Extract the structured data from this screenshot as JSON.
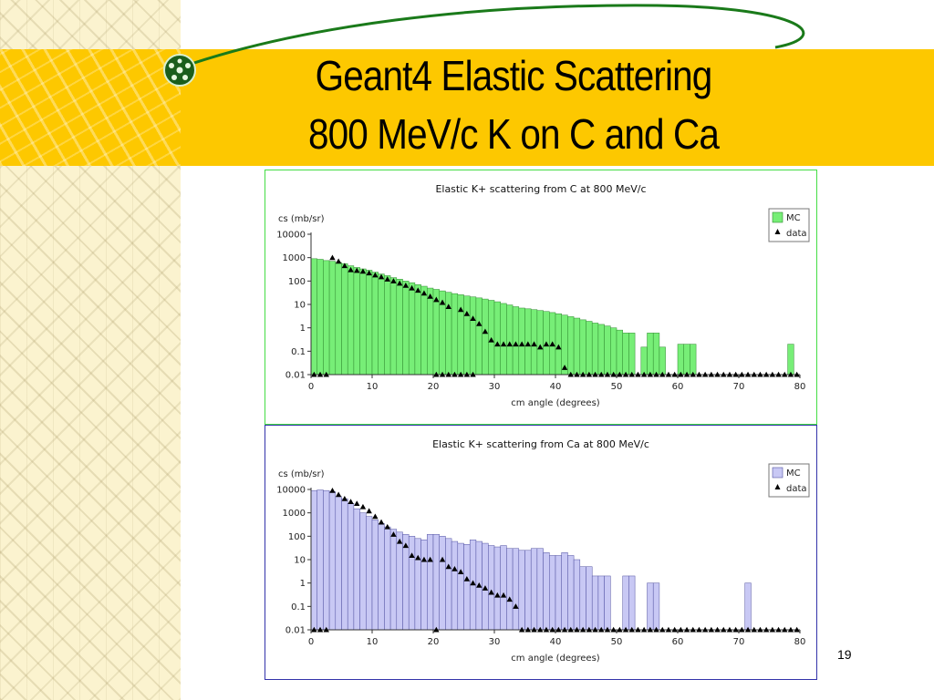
{
  "slide": {
    "title_line1": "Geant4 Elastic Scattering",
    "title_line2": "800 MeV/c  K on C and Ca",
    "page_number": "19",
    "logo_icon": "atom-globe-icon",
    "colors": {
      "band": "#fdc800",
      "orbit": "#1a7a1a"
    }
  },
  "chart_data": [
    {
      "type": "bar",
      "title": "Elastic K+ scattering from C at 800 MeV/c",
      "ylabel": "cs (mb/sr)",
      "xlabel": "cm angle (degrees)",
      "log_y": true,
      "ylim": [
        0.01,
        10000
      ],
      "xlim": [
        0,
        80
      ],
      "bin_width": 1,
      "x_ticks": [
        "0",
        "10",
        "20",
        "30",
        "40",
        "50",
        "60",
        "70",
        "80"
      ],
      "y_ticks": [
        "0.01",
        "0.1",
        "1",
        "10",
        "100",
        "1000",
        "10000"
      ],
      "legend": {
        "position": "top-right",
        "items": [
          "MC",
          "data"
        ]
      },
      "colors": {
        "mc_fill": "#77ee77",
        "mc_edge": "#2f8a2f",
        "frame": "#44dd44"
      },
      "series": [
        {
          "name": "MC",
          "values": [
            900,
            850,
            750,
            700,
            620,
            550,
            450,
            380,
            330,
            290,
            240,
            200,
            170,
            140,
            120,
            100,
            85,
            70,
            60,
            50,
            44,
            38,
            33,
            29,
            26,
            23,
            21,
            19,
            17,
            15,
            13,
            11,
            9.5,
            8,
            7,
            6.5,
            6,
            5.5,
            5,
            4.5,
            4,
            3.5,
            3,
            2.6,
            2.2,
            1.9,
            1.6,
            1.4,
            1.2,
            1,
            0.8,
            0.6,
            0.6,
            0.01,
            0.15,
            0.6,
            0.6,
            0.15,
            0.01,
            0.01,
            0.2,
            0.2,
            0.2,
            0.01,
            0.01,
            0.01,
            0.01,
            0.01,
            0.01,
            0.01,
            0.01,
            0.01,
            0.01,
            0.01,
            0.01,
            0.01,
            0.01,
            0.01,
            0.2,
            0.01
          ]
        },
        {
          "name": "data",
          "points": [
            [
              0.5,
              0.01
            ],
            [
              1.5,
              0.01
            ],
            [
              2.5,
              0.01
            ],
            [
              3.5,
              1000
            ],
            [
              4.5,
              700
            ],
            [
              5.5,
              450
            ],
            [
              6.5,
              300
            ],
            [
              7.5,
              280
            ],
            [
              8.5,
              260
            ],
            [
              9.5,
              220
            ],
            [
              10.5,
              180
            ],
            [
              11.5,
              150
            ],
            [
              12.5,
              120
            ],
            [
              13.5,
              100
            ],
            [
              14.5,
              80
            ],
            [
              15.5,
              65
            ],
            [
              16.5,
              50
            ],
            [
              17.5,
              40
            ],
            [
              18.5,
              30
            ],
            [
              19.5,
              22
            ],
            [
              20.5,
              16
            ],
            [
              21.5,
              12
            ],
            [
              22.5,
              0.01
            ],
            [
              23.5,
              0.01
            ],
            [
              24.5,
              0.01
            ],
            [
              25.5,
              0.01
            ],
            [
              26.5,
              0.01
            ],
            [
              21.5,
              0.01
            ],
            [
              20.5,
              0.01
            ],
            [
              21.5,
              12
            ],
            [
              22.5,
              8
            ],
            [
              24.5,
              6
            ],
            [
              25.5,
              4
            ],
            [
              26.5,
              2.5
            ],
            [
              27.5,
              1.5
            ],
            [
              28.5,
              0.7
            ],
            [
              29.5,
              0.3
            ],
            [
              30.5,
              0.2
            ],
            [
              31.5,
              0.2
            ],
            [
              32.5,
              0.2
            ],
            [
              33.5,
              0.2
            ],
            [
              34.5,
              0.2
            ],
            [
              35.5,
              0.2
            ],
            [
              36.5,
              0.2
            ],
            [
              37.5,
              0.15
            ],
            [
              38.5,
              0.2
            ],
            [
              39.5,
              0.2
            ],
            [
              40.5,
              0.15
            ],
            [
              41.5,
              0.02
            ],
            [
              42.5,
              0.01
            ],
            [
              43.5,
              0.01
            ],
            [
              44.5,
              0.01
            ],
            [
              45.5,
              0.01
            ],
            [
              46.5,
              0.01
            ],
            [
              47.5,
              0.01
            ],
            [
              48.5,
              0.01
            ],
            [
              49.5,
              0.01
            ],
            [
              50.5,
              0.01
            ],
            [
              51.5,
              0.01
            ],
            [
              52.5,
              0.01
            ],
            [
              53.5,
              0.01
            ],
            [
              54.5,
              0.01
            ],
            [
              55.5,
              0.01
            ],
            [
              56.5,
              0.01
            ],
            [
              57.5,
              0.01
            ],
            [
              58.5,
              0.01
            ],
            [
              59.5,
              0.01
            ],
            [
              60.5,
              0.01
            ],
            [
              61.5,
              0.01
            ],
            [
              62.5,
              0.01
            ],
            [
              63.5,
              0.01
            ],
            [
              64.5,
              0.01
            ],
            [
              65.5,
              0.01
            ],
            [
              66.5,
              0.01
            ],
            [
              67.5,
              0.01
            ],
            [
              68.5,
              0.01
            ],
            [
              69.5,
              0.01
            ],
            [
              70.5,
              0.01
            ],
            [
              71.5,
              0.01
            ],
            [
              72.5,
              0.01
            ],
            [
              73.5,
              0.01
            ],
            [
              74.5,
              0.01
            ],
            [
              75.5,
              0.01
            ],
            [
              76.5,
              0.01
            ],
            [
              77.5,
              0.01
            ],
            [
              78.5,
              0.01
            ],
            [
              79.5,
              0.01
            ]
          ]
        }
      ]
    },
    {
      "type": "bar",
      "title": "Elastic K+ scattering from Ca at 800 MeV/c",
      "ylabel": "cs (mb/sr)",
      "xlabel": "cm angle (degrees)",
      "log_y": true,
      "ylim": [
        0.01,
        10000
      ],
      "xlim": [
        0,
        80
      ],
      "bin_width": 1,
      "x_ticks": [
        "0",
        "10",
        "20",
        "30",
        "40",
        "50",
        "60",
        "70",
        "80"
      ],
      "y_ticks": [
        "0.01",
        "0.1",
        "1",
        "10",
        "100",
        "1000",
        "10000"
      ],
      "legend": {
        "position": "top-right",
        "items": [
          "MC",
          "data"
        ]
      },
      "colors": {
        "mc_fill": "#c8c8f4",
        "mc_edge": "#5050a0",
        "frame": "#3333aa"
      },
      "series": [
        {
          "name": "MC",
          "values": [
            9000,
            9500,
            9000,
            8000,
            5000,
            4000,
            2500,
            1500,
            1000,
            700,
            500,
            350,
            250,
            200,
            150,
            120,
            100,
            80,
            70,
            120,
            120,
            100,
            80,
            60,
            50,
            45,
            70,
            60,
            50,
            40,
            35,
            40,
            30,
            30,
            25,
            25,
            30,
            30,
            20,
            15,
            15,
            20,
            15,
            10,
            5,
            5,
            2,
            2,
            2,
            0.01,
            0.01,
            2,
            2,
            0.01,
            0.01,
            1,
            1,
            0.01,
            0.01,
            0.01,
            0.01,
            0.01,
            0.01,
            0.01,
            0.01,
            0.01,
            0.01,
            0.01,
            0.01,
            0.01,
            0.01,
            1,
            0.01,
            0.01,
            0.01,
            0.01,
            0.01,
            0.01,
            0.01,
            0.01
          ]
        },
        {
          "name": "data",
          "points": [
            [
              0.5,
              0.01
            ],
            [
              1.5,
              0.01
            ],
            [
              2.5,
              0.01
            ],
            [
              3.5,
              9000
            ],
            [
              4.5,
              6000
            ],
            [
              5.5,
              4000
            ],
            [
              6.5,
              3000
            ],
            [
              7.5,
              2500
            ],
            [
              8.5,
              1800
            ],
            [
              9.5,
              1200
            ],
            [
              10.5,
              700
            ],
            [
              11.5,
              400
            ],
            [
              12.5,
              250
            ],
            [
              13.5,
              120
            ],
            [
              14.5,
              60
            ],
            [
              15.5,
              40
            ],
            [
              16.5,
              15
            ],
            [
              17.5,
              12
            ],
            [
              18.5,
              10
            ],
            [
              19.5,
              10
            ],
            [
              20.5,
              0.01
            ],
            [
              21.5,
              10
            ],
            [
              22.5,
              5
            ],
            [
              23.5,
              4
            ],
            [
              24.5,
              3
            ],
            [
              25.5,
              1.5
            ],
            [
              26.5,
              1
            ],
            [
              27.5,
              0.8
            ],
            [
              28.5,
              0.6
            ],
            [
              29.5,
              0.4
            ],
            [
              30.5,
              0.3
            ],
            [
              31.5,
              0.3
            ],
            [
              32.5,
              0.2
            ],
            [
              33.5,
              0.1
            ],
            [
              34.5,
              0.01
            ],
            [
              35.5,
              0.01
            ],
            [
              36.5,
              0.01
            ],
            [
              37.5,
              0.01
            ],
            [
              38.5,
              0.01
            ],
            [
              39.5,
              0.01
            ],
            [
              40.5,
              0.01
            ],
            [
              41.5,
              0.01
            ],
            [
              42.5,
              0.01
            ],
            [
              43.5,
              0.01
            ],
            [
              44.5,
              0.01
            ],
            [
              45.5,
              0.01
            ],
            [
              46.5,
              0.01
            ],
            [
              47.5,
              0.01
            ],
            [
              48.5,
              0.01
            ],
            [
              49.5,
              0.01
            ],
            [
              50.5,
              0.01
            ],
            [
              51.5,
              0.01
            ],
            [
              52.5,
              0.01
            ],
            [
              53.5,
              0.01
            ],
            [
              54.5,
              0.01
            ],
            [
              55.5,
              0.01
            ],
            [
              56.5,
              0.01
            ],
            [
              57.5,
              0.01
            ],
            [
              58.5,
              0.01
            ],
            [
              59.5,
              0.01
            ],
            [
              60.5,
              0.01
            ],
            [
              61.5,
              0.01
            ],
            [
              62.5,
              0.01
            ],
            [
              63.5,
              0.01
            ],
            [
              64.5,
              0.01
            ],
            [
              65.5,
              0.01
            ],
            [
              66.5,
              0.01
            ],
            [
              67.5,
              0.01
            ],
            [
              68.5,
              0.01
            ],
            [
              69.5,
              0.01
            ],
            [
              70.5,
              0.01
            ],
            [
              71.5,
              0.01
            ],
            [
              72.5,
              0.01
            ],
            [
              73.5,
              0.01
            ],
            [
              74.5,
              0.01
            ],
            [
              75.5,
              0.01
            ],
            [
              76.5,
              0.01
            ],
            [
              77.5,
              0.01
            ],
            [
              78.5,
              0.01
            ],
            [
              79.5,
              0.01
            ]
          ]
        }
      ]
    }
  ]
}
